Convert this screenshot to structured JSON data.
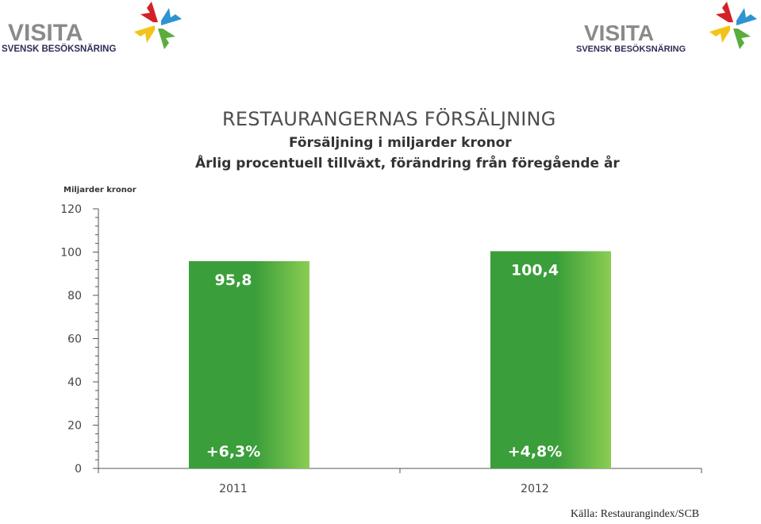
{
  "logos": {
    "word": "VISITA",
    "sub": "SVENSK BESÖKSNÄRING"
  },
  "colors": {
    "bar": "#3a9e3a",
    "bar_highlight": "#8bcd52",
    "axis": "#555555",
    "logo_red": "#d42027",
    "logo_blue": "#2f93d1",
    "logo_yellow": "#f3c318",
    "logo_green": "#5aad3c"
  },
  "chart_data": {
    "type": "bar",
    "title": "RESTAURANGERNAS FÖRSÄLJNING",
    "subtitle_1": "Försäljning i miljarder kronor",
    "subtitle_2": "Årlig procentuell tillväxt, förändring från föregående år",
    "ylabel": "Miljarder kronor",
    "xlabel": "",
    "categories": [
      "2011",
      "2012"
    ],
    "values": [
      95.8,
      100.4
    ],
    "value_labels": [
      "95,8",
      "100,4"
    ],
    "growth_labels": [
      "+6,3%",
      "+4,8%"
    ],
    "ylim": [
      0,
      120
    ],
    "yticks": [
      "0",
      "20",
      "40",
      "60",
      "80",
      "100",
      "120"
    ],
    "grid": false
  },
  "source": "Källa: Restaurangindex/SCB"
}
